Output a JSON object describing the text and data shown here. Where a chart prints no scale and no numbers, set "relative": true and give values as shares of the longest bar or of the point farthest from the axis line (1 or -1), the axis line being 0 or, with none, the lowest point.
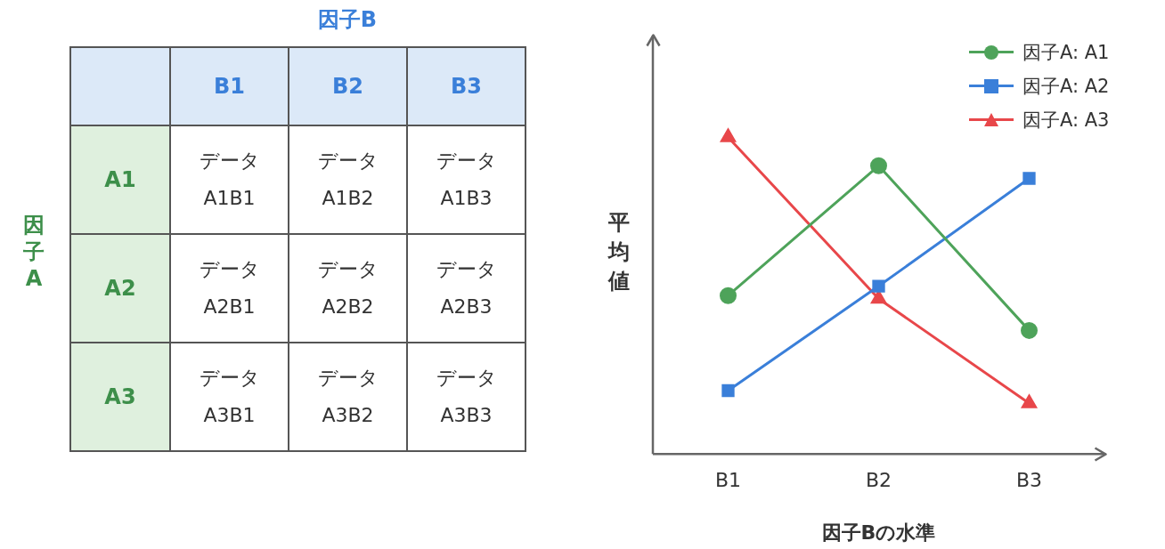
{
  "chart_data": [
    {
      "type": "other",
      "xlabel": "因子B",
      "ylabel": "因子A",
      "categories": [
        "B1",
        "B2",
        "B3"
      ],
      "y_categories": [
        "A1",
        "A2",
        "A3"
      ],
      "cell_labels": [
        [
          "データ\nA1B1",
          "データ\nA1B2",
          "データ\nA1B3"
        ],
        [
          "データ\nA2B1",
          "データ\nA2B2",
          "データ\nA2B3"
        ],
        [
          "データ\nA3B1",
          "データ\nA3B2",
          "データ\nA3B3"
        ]
      ]
    },
    {
      "type": "line",
      "relative": true,
      "xlabel": "因子Bの水準",
      "ylabel": "平均値",
      "categories": [
        "B1",
        "B2",
        "B3"
      ],
      "legend": "top right",
      "grid": false,
      "series": [
        {
          "name": "因子A: A1",
          "color": "#4ea35a",
          "marker": "circle",
          "values": [
            0.5,
            0.91,
            0.39
          ]
        },
        {
          "name": "因子A: A2",
          "color": "#3a7fd9",
          "marker": "square",
          "values": [
            0.2,
            0.53,
            0.87
          ]
        },
        {
          "name": "因子A: A3",
          "color": "#e8474a",
          "marker": "triangle",
          "values": [
            1,
            0.49,
            0.16
          ]
        }
      ]
    }
  ]
}
